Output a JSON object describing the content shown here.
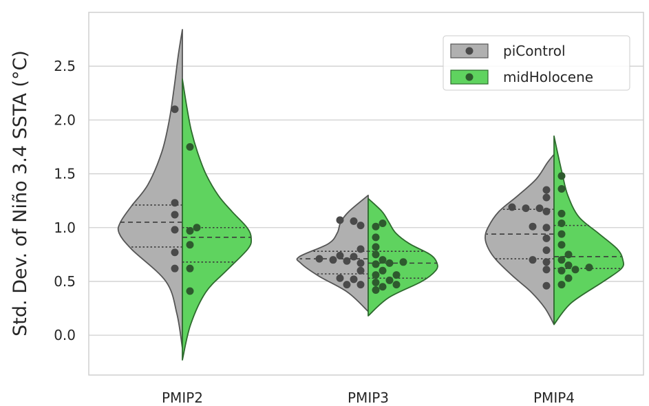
{
  "chart_data": {
    "type": "split-violin",
    "title": "",
    "xlabel": "",
    "ylabel": "Std. Dev. of Niño 3.4 SSTA (°C)",
    "ylim": [
      -0.37,
      3.0
    ],
    "yticks": [
      "0.0",
      "0.5",
      "1.0",
      "1.5",
      "2.0",
      "2.5"
    ],
    "categories": [
      "PMIP2",
      "PMIP3",
      "PMIP4"
    ],
    "grid": true,
    "legend_position": "top-right",
    "series": [
      {
        "name": "piControl",
        "fill_color": "#b0b0b0",
        "edge_color": "#555555",
        "point_color": "#4a4a4a",
        "groups": [
          {
            "category": "PMIP2",
            "extent": [
              -0.12,
              2.84
            ],
            "quartiles": [
              0.82,
              1.05,
              1.21
            ],
            "profile": [
              [
                -0.12,
                0.0
              ],
              [
                0.2,
                0.08
              ],
              [
                0.5,
                0.24
              ],
              [
                0.8,
                0.74
              ],
              [
                0.95,
                0.92
              ],
              [
                1.05,
                0.9
              ],
              [
                1.2,
                0.74
              ],
              [
                1.4,
                0.5
              ],
              [
                1.7,
                0.3
              ],
              [
                2.0,
                0.19
              ],
              [
                2.3,
                0.12
              ],
              [
                2.6,
                0.06
              ],
              [
                2.84,
                0.0
              ]
            ],
            "points": [
              0.62,
              0.77,
              0.98,
              1.12,
              1.23,
              2.1
            ]
          },
          {
            "category": "PMIP3",
            "extent": [
              0.22,
              1.3
            ],
            "quartiles": [
              0.57,
              0.71,
              0.78
            ],
            "profile": [
              [
                0.22,
                0.0
              ],
              [
                0.4,
                0.3
              ],
              [
                0.55,
                0.72
              ],
              [
                0.67,
                0.98
              ],
              [
                0.73,
                1.0
              ],
              [
                0.85,
                0.58
              ],
              [
                0.95,
                0.45
              ],
              [
                1.05,
                0.4
              ],
              [
                1.15,
                0.28
              ],
              [
                1.3,
                0.0
              ]
            ],
            "points": [
              0.47,
              0.47,
              0.52,
              0.53,
              0.6,
              0.67,
              0.69,
              0.7,
              0.71,
              0.73,
              0.74,
              0.8,
              1.02,
              1.06,
              1.07
            ]
          },
          {
            "category": "PMIP4",
            "extent": [
              0.1,
              1.68
            ],
            "quartiles": [
              0.71,
              0.94,
              1.17
            ],
            "profile": [
              [
                0.1,
                0.0
              ],
              [
                0.25,
                0.13
              ],
              [
                0.4,
                0.33
              ],
              [
                0.55,
                0.6
              ],
              [
                0.7,
                0.84
              ],
              [
                0.8,
                0.95
              ],
              [
                0.9,
                1.0
              ],
              [
                1.0,
                0.96
              ],
              [
                1.15,
                0.8
              ],
              [
                1.3,
                0.52
              ],
              [
                1.45,
                0.26
              ],
              [
                1.6,
                0.1
              ],
              [
                1.68,
                0.0
              ]
            ],
            "points": [
              0.46,
              0.61,
              0.68,
              0.7,
              0.79,
              0.9,
              1.0,
              1.01,
              1.15,
              1.18,
              1.18,
              1.19,
              1.28,
              1.35
            ]
          }
        ]
      },
      {
        "name": "midHolocene",
        "fill_color": "#5fd35f",
        "edge_color": "#2d6a2d",
        "point_color": "#2e5a2e",
        "groups": [
          {
            "category": "PMIP2",
            "extent": [
              -0.23,
              2.38
            ],
            "quartiles": [
              0.68,
              0.91,
              1.0
            ],
            "profile": [
              [
                -0.23,
                0.0
              ],
              [
                0.1,
                0.12
              ],
              [
                0.4,
                0.34
              ],
              [
                0.6,
                0.64
              ],
              [
                0.8,
                0.95
              ],
              [
                0.9,
                1.0
              ],
              [
                1.0,
                0.94
              ],
              [
                1.15,
                0.72
              ],
              [
                1.3,
                0.52
              ],
              [
                1.5,
                0.34
              ],
              [
                1.7,
                0.22
              ],
              [
                1.9,
                0.13
              ],
              [
                2.1,
                0.07
              ],
              [
                2.38,
                0.0
              ]
            ],
            "points": [
              0.41,
              0.62,
              0.84,
              0.97,
              1.0,
              1.75
            ]
          },
          {
            "category": "PMIP3",
            "extent": [
              0.18,
              1.27
            ],
            "quartiles": [
              0.53,
              0.67,
              0.78
            ],
            "profile": [
              [
                0.18,
                0.0
              ],
              [
                0.35,
                0.3
              ],
              [
                0.5,
                0.78
              ],
              [
                0.6,
                0.98
              ],
              [
                0.67,
                1.0
              ],
              [
                0.75,
                0.9
              ],
              [
                0.85,
                0.6
              ],
              [
                0.95,
                0.4
              ],
              [
                1.05,
                0.3
              ],
              [
                1.15,
                0.2
              ],
              [
                1.27,
                0.0
              ]
            ],
            "points": [
              0.42,
              0.45,
              0.47,
              0.49,
              0.51,
              0.56,
              0.56,
              0.6,
              0.66,
              0.67,
              0.68,
              0.7,
              0.75,
              0.82,
              0.91,
              1.01,
              1.04
            ]
          },
          {
            "category": "PMIP4",
            "extent": [
              0.1,
              1.85
            ],
            "quartiles": [
              0.62,
              0.73,
              1.02
            ],
            "profile": [
              [
                0.1,
                0.0
              ],
              [
                0.3,
                0.25
              ],
              [
                0.5,
                0.72
              ],
              [
                0.62,
                0.98
              ],
              [
                0.7,
                1.0
              ],
              [
                0.8,
                0.92
              ],
              [
                0.95,
                0.64
              ],
              [
                1.1,
                0.36
              ],
              [
                1.3,
                0.2
              ],
              [
                1.5,
                0.12
              ],
              [
                1.7,
                0.05
              ],
              [
                1.85,
                0.0
              ]
            ],
            "points": [
              0.47,
              0.53,
              0.6,
              0.61,
              0.63,
              0.65,
              0.7,
              0.75,
              0.84,
              0.94,
              1.04,
              1.13,
              1.36,
              1.48
            ]
          }
        ]
      }
    ]
  }
}
